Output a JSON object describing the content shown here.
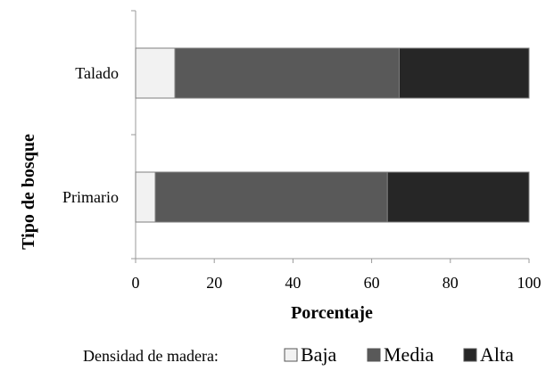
{
  "chart_data": {
    "type": "bar",
    "orientation": "horizontal",
    "stacked": true,
    "categories": [
      "Talado",
      "Primario"
    ],
    "series": [
      {
        "name": "Baja",
        "values": [
          10,
          5
        ],
        "color": "#f2f2f2"
      },
      {
        "name": "Media",
        "values": [
          57,
          59
        ],
        "color": "#595959"
      },
      {
        "name": "Alta",
        "values": [
          33,
          36
        ],
        "color": "#262626"
      }
    ],
    "xlabel": "Porcentaje",
    "ylabel": "Tipo de bosque",
    "xlim": [
      0,
      100
    ],
    "xticks": [
      0,
      20,
      40,
      60,
      80,
      100
    ],
    "grid": false,
    "legend": {
      "title": "Densidad de madera:",
      "position": "bottom"
    }
  }
}
